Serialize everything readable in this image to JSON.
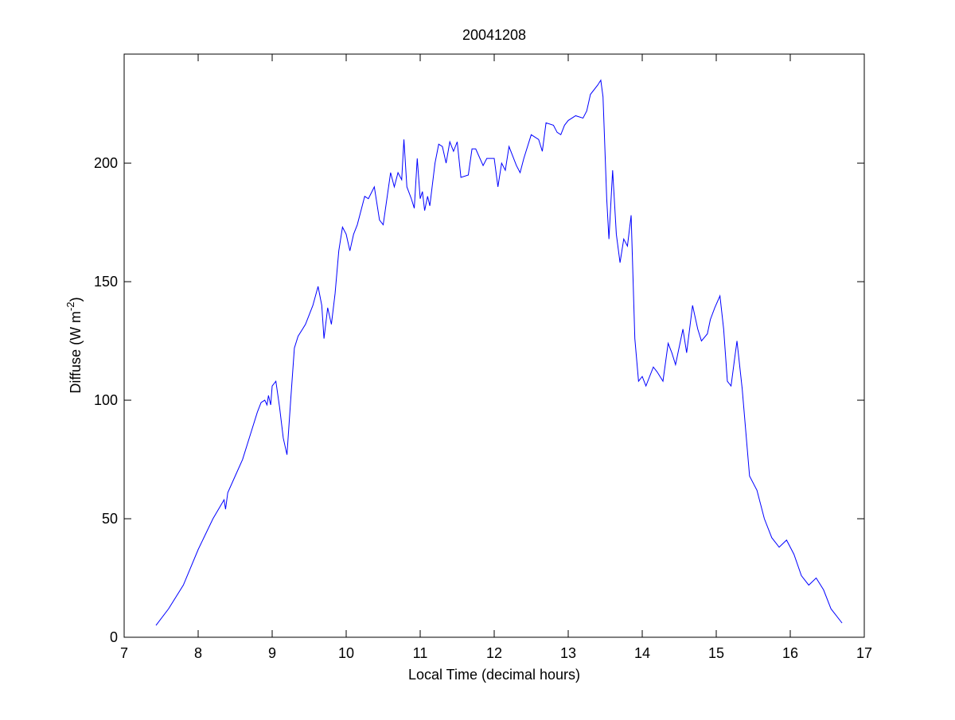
{
  "chart_data": {
    "type": "line",
    "title": "20041208",
    "xlabel": "Local Time (decimal hours)",
    "ylabel": {
      "text": "Diffuse (W m",
      "superscript": "-2",
      "suffix": ")"
    },
    "xlim": [
      7,
      17
    ],
    "xticks": [
      7,
      8,
      9,
      10,
      11,
      12,
      13,
      14,
      15,
      16,
      17
    ],
    "ylim": [
      0,
      246
    ],
    "yticks": [
      0,
      50,
      100,
      150,
      200
    ],
    "grid": false,
    "x": [
      7.43,
      7.6,
      7.8,
      8.0,
      8.2,
      8.35,
      8.37,
      8.4,
      8.5,
      8.6,
      8.7,
      8.8,
      8.85,
      8.9,
      8.93,
      8.95,
      8.98,
      9.0,
      9.05,
      9.1,
      9.15,
      9.2,
      9.25,
      9.3,
      9.35,
      9.45,
      9.55,
      9.62,
      9.67,
      9.7,
      9.75,
      9.8,
      9.85,
      9.9,
      9.95,
      10.0,
      10.05,
      10.1,
      10.15,
      10.25,
      10.3,
      10.38,
      10.45,
      10.5,
      10.55,
      10.6,
      10.65,
      10.7,
      10.75,
      10.78,
      10.82,
      10.88,
      10.92,
      10.96,
      11.0,
      11.03,
      11.06,
      11.1,
      11.13,
      11.2,
      11.25,
      11.3,
      11.35,
      11.4,
      11.45,
      11.5,
      11.55,
      11.65,
      11.7,
      11.75,
      11.85,
      11.9,
      12.0,
      12.05,
      12.1,
      12.15,
      12.2,
      12.3,
      12.35,
      12.4,
      12.5,
      12.6,
      12.65,
      12.7,
      12.8,
      12.85,
      12.9,
      12.95,
      13.0,
      13.1,
      13.2,
      13.25,
      13.3,
      13.4,
      13.44,
      13.47,
      13.52,
      13.55,
      13.6,
      13.65,
      13.7,
      13.75,
      13.8,
      13.85,
      13.9,
      13.95,
      14.0,
      14.05,
      14.15,
      14.2,
      14.28,
      14.35,
      14.4,
      14.45,
      14.55,
      14.6,
      14.68,
      14.75,
      14.8,
      14.88,
      14.92,
      14.98,
      15.05,
      15.1,
      15.15,
      15.2,
      15.25,
      15.28,
      15.35,
      15.45,
      15.55,
      15.65,
      15.75,
      15.85,
      15.95,
      16.05,
      16.15,
      16.25,
      16.35,
      16.45,
      16.55,
      16.7
    ],
    "series": [
      {
        "name": "Diffuse",
        "color": "#0000ff",
        "values": [
          5,
          12,
          22,
          37,
          50,
          58,
          54,
          61,
          68,
          75,
          85,
          95,
          99,
          100,
          98,
          102,
          98,
          106,
          108,
          97,
          84,
          77,
          100,
          122,
          127,
          132,
          140,
          148,
          140,
          126,
          139,
          132,
          145,
          163,
          173,
          170,
          163,
          170,
          174,
          186,
          185,
          190,
          176,
          174,
          185,
          196,
          190,
          196,
          193,
          210,
          190,
          185,
          181,
          202,
          185,
          188,
          180,
          186,
          182,
          200,
          208,
          207,
          200,
          209,
          205,
          209,
          194,
          195,
          206,
          206,
          199,
          202,
          202,
          190,
          200,
          197,
          207,
          199,
          196,
          202,
          212,
          210,
          205,
          217,
          216,
          213,
          212,
          216,
          218,
          220,
          219,
          222,
          229,
          233,
          235,
          228,
          185,
          168,
          197,
          170,
          158,
          168,
          165,
          178,
          126,
          108,
          110,
          106,
          114,
          112,
          108,
          124,
          120,
          115,
          130,
          120,
          140,
          130,
          125,
          128,
          134,
          139,
          144,
          130,
          108,
          106,
          118,
          125,
          105,
          68,
          62,
          50,
          42,
          38,
          41,
          35,
          26,
          22,
          25,
          20,
          12,
          6
        ]
      }
    ]
  }
}
